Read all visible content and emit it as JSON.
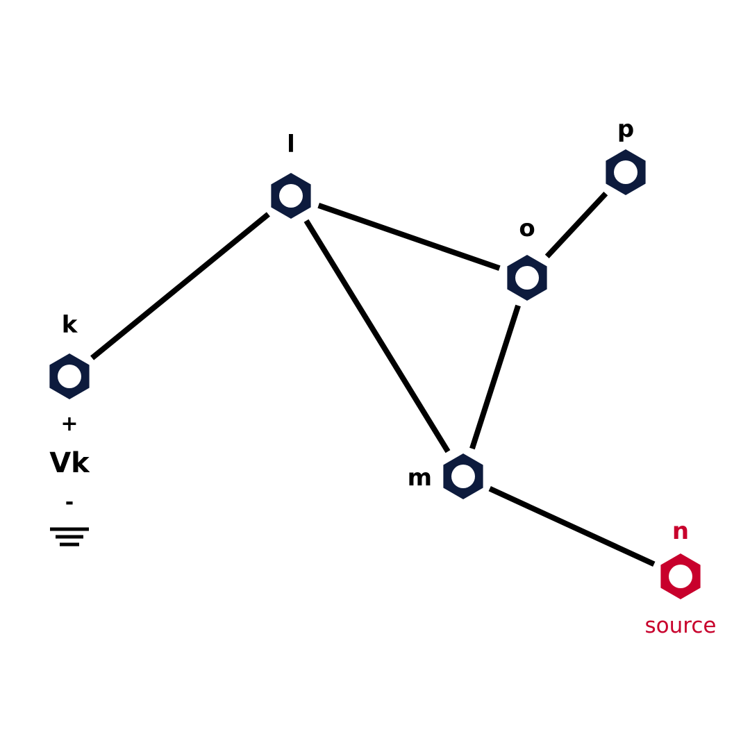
{
  "colors": {
    "node": "#0d1b3d",
    "source": "#c8002c",
    "edge": "#000000",
    "background": "#ffffff"
  },
  "nodes": [
    {
      "id": "l",
      "label": "l",
      "type": "normal"
    },
    {
      "id": "p",
      "label": "p",
      "type": "normal"
    },
    {
      "id": "o",
      "label": "o",
      "type": "normal"
    },
    {
      "id": "k",
      "label": "k",
      "type": "normal"
    },
    {
      "id": "m",
      "label": "m",
      "type": "normal"
    },
    {
      "id": "n",
      "label": "n",
      "type": "source"
    }
  ],
  "edges": [
    {
      "from": "l",
      "to": "k"
    },
    {
      "from": "l",
      "to": "o"
    },
    {
      "from": "l",
      "to": "m"
    },
    {
      "from": "o",
      "to": "p"
    },
    {
      "from": "o",
      "to": "m"
    },
    {
      "from": "m",
      "to": "n"
    }
  ],
  "source_caption": "source",
  "voltage_source": {
    "plus": "+",
    "label": "Vk",
    "minus": "-"
  }
}
